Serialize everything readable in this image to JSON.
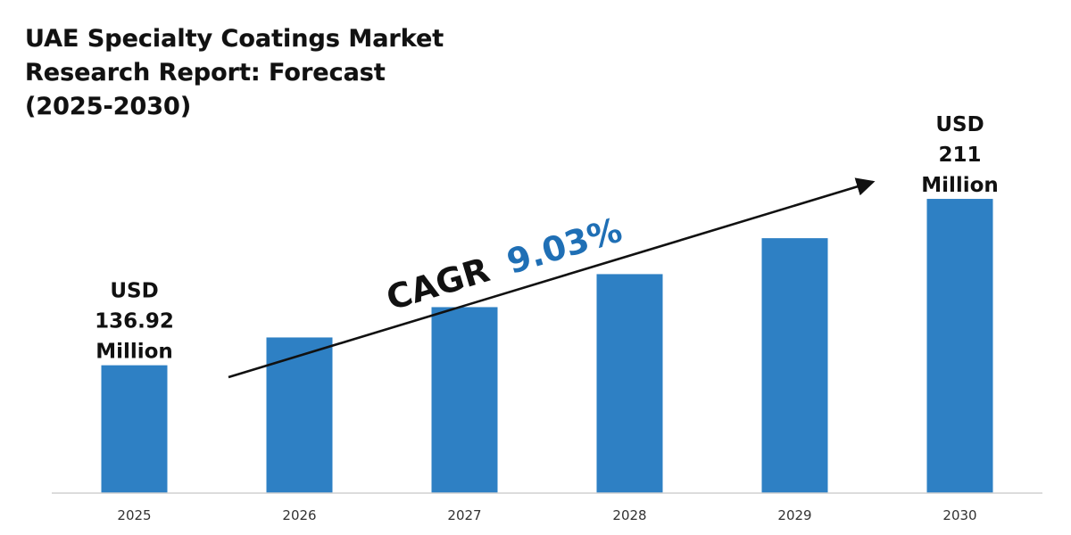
{
  "title_lines": [
    "UAE Specialty Coatings Market",
    "Research Report: Forecast",
    "(2025-2030)"
  ],
  "colors": {
    "bar": "#2e80c4",
    "accent": "#1f6fb5",
    "text": "#111111"
  },
  "annotation": {
    "cagr_label": "CAGR",
    "cagr_value": "9.03%"
  },
  "chart_data": {
    "type": "bar",
    "title": "UAE Specialty Coatings Market Research Report: Forecast (2025-2030)",
    "categories": [
      "2025",
      "2026",
      "2027",
      "2028",
      "2029",
      "2030"
    ],
    "values": [
      136.92,
      149.3,
      162.8,
      177.5,
      193.5,
      211
    ],
    "unit": "USD Million",
    "ylim": [
      80,
      240
    ],
    "grid": false,
    "legend": "none",
    "data_labels": [
      {
        "category": "2025",
        "lines": [
          "USD",
          "136.92",
          "Million"
        ]
      },
      {
        "category": "2030",
        "lines": [
          "USD",
          "211",
          "Million"
        ]
      }
    ]
  }
}
